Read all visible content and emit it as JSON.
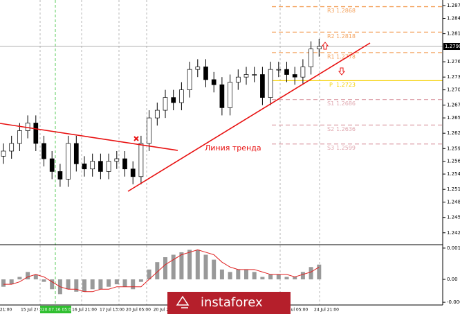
{
  "chart_data": [
    {
      "type": "candlestick",
      "x_labels": [
        "Jul 21:00",
        "15 Jul 21:00",
        "2020.07.16 05:00",
        "16 Jul 21:00",
        "17 Jul 13:00",
        "20 Jul 05:00",
        "20 Jul 2",
        "Jul 05:00",
        "24 Jul 21:00"
      ],
      "open": [
        1.2575,
        1.2585,
        1.26,
        1.2625,
        1.264,
        1.26,
        1.257,
        1.2545,
        1.253,
        1.26,
        1.256,
        1.255,
        1.2565,
        1.2545,
        1.2565,
        1.257,
        1.255,
        1.2535,
        1.26,
        1.265,
        1.2665,
        1.269,
        1.268,
        1.2705,
        1.2745,
        1.275,
        1.2725,
        1.2715,
        1.267,
        1.272,
        1.273,
        1.2735,
        1.2735,
        1.269,
        1.2745,
        1.2745,
        1.2735,
        1.273,
        1.275,
        1.2785
      ],
      "high": [
        1.26,
        1.2615,
        1.264,
        1.2655,
        1.2655,
        1.2615,
        1.2585,
        1.256,
        1.2615,
        1.2615,
        1.2575,
        1.258,
        1.258,
        1.258,
        1.2585,
        1.2585,
        1.2565,
        1.2615,
        1.2665,
        1.268,
        1.2705,
        1.2705,
        1.272,
        1.276,
        1.2765,
        1.2765,
        1.274,
        1.273,
        1.2735,
        1.2745,
        1.275,
        1.275,
        1.275,
        1.276,
        1.276,
        1.276,
        1.275,
        1.2765,
        1.28,
        1.2805
      ],
      "low": [
        1.256,
        1.257,
        1.2585,
        1.261,
        1.2585,
        1.2555,
        1.253,
        1.2515,
        1.2515,
        1.2545,
        1.2535,
        1.2535,
        1.253,
        1.253,
        1.255,
        1.2535,
        1.252,
        1.252,
        1.2585,
        1.2635,
        1.265,
        1.2665,
        1.2665,
        1.269,
        1.273,
        1.271,
        1.27,
        1.2655,
        1.2655,
        1.2705,
        1.2715,
        1.272,
        1.2675,
        1.2675,
        1.273,
        1.272,
        1.2715,
        1.2715,
        1.2735,
        1.277
      ],
      "close": [
        1.2585,
        1.26,
        1.2625,
        1.264,
        1.26,
        1.257,
        1.2545,
        1.253,
        1.26,
        1.256,
        1.255,
        1.2565,
        1.2545,
        1.2565,
        1.257,
        1.255,
        1.2535,
        1.26,
        1.265,
        1.2665,
        1.269,
        1.268,
        1.2705,
        1.2745,
        1.275,
        1.2725,
        1.2715,
        1.267,
        1.272,
        1.273,
        1.2735,
        1.2735,
        1.269,
        1.2745,
        1.2745,
        1.2735,
        1.273,
        1.275,
        1.2785,
        1.279
      ],
      "ylim": [
        1.2403,
        1.2881
      ],
      "yticks": [
        {
          "value": 1.287,
          "label": "1.2870"
        },
        1.2845,
        1.2815,
        {
          "value": 1.276,
          "label": "1.2760"
        },
        {
          "value": 1.273,
          "label": "1.2730"
        },
        1.2705,
        1.2675,
        {
          "value": 1.265,
          "label": "1.2650"
        },
        {
          "value": 1.262,
          "label": "1.2620"
        },
        {
          "value": 1.259,
          "label": "1.2590"
        },
        1.2565,
        {
          "value": 1.254,
          "label": "1.2540"
        },
        {
          "value": 1.251,
          "label": "1.2510"
        },
        1.2485,
        1.2455,
        1.2425
      ],
      "current_price": {
        "value": 1.279,
        "label": "1.2790"
      },
      "levels": [
        {
          "name": "R3",
          "value": 1.2868,
          "color": "#f4a460"
        },
        {
          "name": "R2",
          "value": 1.2818,
          "color": "#f4a460"
        },
        {
          "name": "R1",
          "value": 1.2778,
          "color": "#f4a460"
        },
        {
          "name": "P",
          "value": 1.2723,
          "color": "#f5d000"
        },
        {
          "name": "S1",
          "value": 1.2686,
          "color": "#e0a8b0"
        },
        {
          "name": "S2",
          "value": 1.2636,
          "color": "#e0a8b0"
        },
        {
          "name": "S3",
          "value": 1.2599,
          "color": "#e0a8b0"
        }
      ],
      "annotation": "Линия тренда"
    },
    {
      "type": "macd",
      "histogram": [
        -0.0003,
        -0.0002,
        0.0001,
        0.0003,
        0.0002,
        -0.0001,
        -0.0004,
        -0.0006,
        -0.0004,
        -0.0005,
        -0.0005,
        -0.0004,
        -0.0004,
        -0.0003,
        -0.0002,
        -0.0003,
        -0.0004,
        -0.0001,
        0.0004,
        0.0007,
        0.0009,
        0.001,
        0.0011,
        0.0012,
        0.0012,
        0.001,
        0.0008,
        0.0004,
        0.0003,
        0.0004,
        0.0004,
        0.0003,
        0.0001,
        0.0002,
        0.0002,
        0.0001,
        0.0001,
        0.0003,
        0.0005,
        0.0006
      ],
      "signal": [
        -0.0002,
        -0.0002,
        -0.0001,
        0.0001,
        0.0002,
        0.0001,
        -0.0001,
        -0.0003,
        -0.0004,
        -0.0004,
        -0.0005,
        -0.0005,
        -0.0004,
        -0.0004,
        -0.0003,
        -0.0003,
        -0.0003,
        -0.0003,
        0,
        0.0003,
        0.0006,
        0.0008,
        0.001,
        0.0011,
        0.0012,
        0.0011,
        0.001,
        0.0007,
        0.0005,
        0.0004,
        0.0004,
        0.0004,
        0.0003,
        0.0002,
        0.0002,
        0.0002,
        0.0001,
        0.0002,
        0.0003,
        0.0005
      ],
      "signal_color": "#e02020",
      "histogram_color": "#999999",
      "ylim": [
        -0.00104,
        0.00138
      ],
      "yticks": [
        0.00127,
        {
          "value": 0,
          "label": "0.00"
        },
        -0.00093
      ]
    }
  ],
  "watermark": "instaforex"
}
